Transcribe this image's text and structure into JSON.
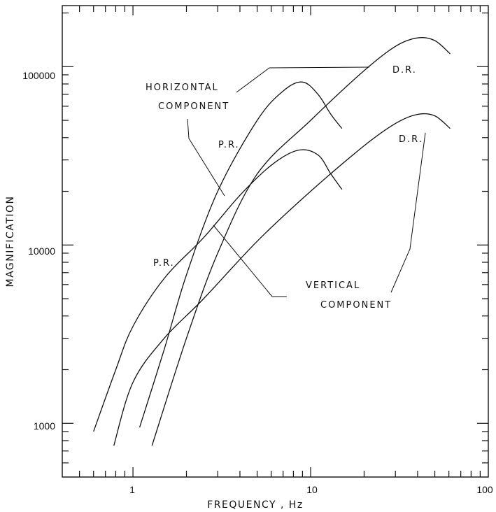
{
  "chart_data": {
    "type": "line",
    "xscale": "log",
    "yscale": "log",
    "xlim": [
      0.4,
      100
    ],
    "ylim": [
      500,
      220000
    ],
    "xlabel": "FREQUENCY , Hz",
    "ylabel": "MAGNIFICATION",
    "xticks": [
      {
        "value": 1,
        "label": "1"
      },
      {
        "value": 10,
        "label": "10"
      },
      {
        "value": 100,
        "label": "100"
      }
    ],
    "yticks": [
      {
        "value": 1000,
        "label": "1000"
      },
      {
        "value": 10000,
        "label": "10000"
      },
      {
        "value": 100000,
        "label": "100000"
      }
    ],
    "series": [
      {
        "id": "horizontal-pr",
        "points": [
          [
            1.09,
            950
          ],
          [
            1.5,
            2600
          ],
          [
            2.0,
            6800
          ],
          [
            3.0,
            20000
          ],
          [
            5.0,
            50000
          ],
          [
            7.0,
            73000
          ],
          [
            9.0,
            82000
          ],
          [
            11.0,
            70000
          ],
          [
            13.0,
            54000
          ],
          [
            15.0,
            45000
          ]
        ]
      },
      {
        "id": "horizontal-dr",
        "points": [
          [
            1.28,
            750
          ],
          [
            2.0,
            3000
          ],
          [
            3.0,
            9000
          ],
          [
            5.0,
            25000
          ],
          [
            10.0,
            50000
          ],
          [
            20.0,
            95000
          ],
          [
            30.0,
            130000
          ],
          [
            40.0,
            145000
          ],
          [
            50.0,
            140000
          ],
          [
            61.0,
            118000
          ]
        ]
      },
      {
        "id": "vertical-pr",
        "points": [
          [
            0.6,
            900
          ],
          [
            0.8,
            2000
          ],
          [
            1.0,
            3500
          ],
          [
            1.5,
            6500
          ],
          [
            2.5,
            11000
          ],
          [
            4.0,
            19000
          ],
          [
            6.0,
            28000
          ],
          [
            8.5,
            34000
          ],
          [
            11.0,
            32000
          ],
          [
            13.0,
            25000
          ],
          [
            15.0,
            20500
          ]
        ]
      },
      {
        "id": "vertical-dr",
        "points": [
          [
            0.78,
            750
          ],
          [
            1.0,
            1700
          ],
          [
            1.5,
            3000
          ],
          [
            2.5,
            5000
          ],
          [
            5.0,
            10500
          ],
          [
            10.0,
            20000
          ],
          [
            20.0,
            36000
          ],
          [
            30.0,
            48000
          ],
          [
            40.0,
            54000
          ],
          [
            50.0,
            53000
          ],
          [
            61.0,
            45000
          ]
        ]
      }
    ],
    "annotations": {
      "horizontal_1": "HORIZONTAL",
      "horizontal_2": "COMPONENT",
      "vertical_1": "VERTICAL",
      "vertical_2": "COMPONENT",
      "pr_label": "P.R.",
      "dr_label": "D.R."
    },
    "grid": false,
    "legend": "none"
  }
}
